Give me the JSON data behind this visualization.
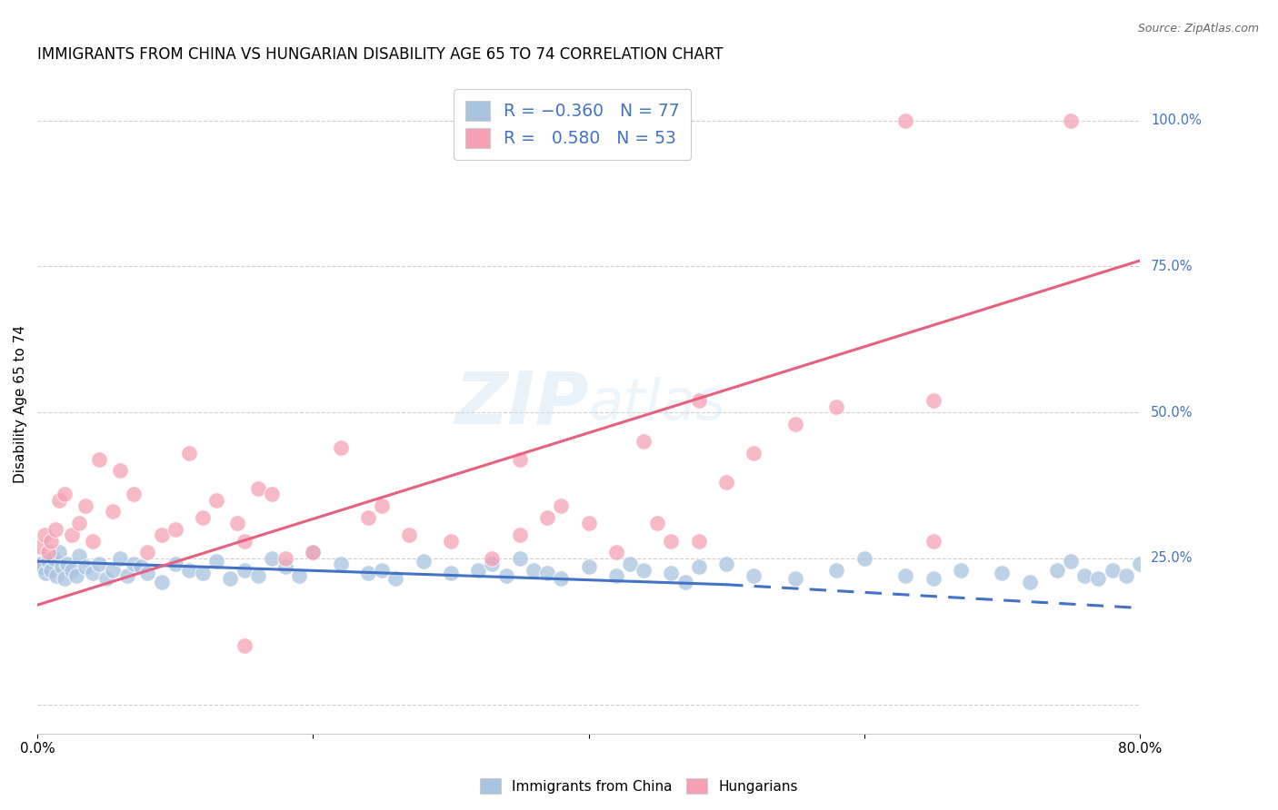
{
  "title": "IMMIGRANTS FROM CHINA VS HUNGARIAN DISABILITY AGE 65 TO 74 CORRELATION CHART",
  "source": "Source: ZipAtlas.com",
  "ylabel": "Disability Age 65 to 74",
  "legend_label1": "Immigrants from China",
  "legend_label2": "Hungarians",
  "watermark": "ZIPatlas",
  "blue_color": "#a8c4e0",
  "pink_color": "#f5a0b5",
  "blue_line_color": "#4472c4",
  "pink_line_color": "#e86080",
  "text_color": "#4472c4",
  "grid_color": "#d0d0d0",
  "blue_scatter_x": [
    0.2,
    0.4,
    0.6,
    0.8,
    1.0,
    1.2,
    1.4,
    1.6,
    1.8,
    2.0,
    2.2,
    2.5,
    2.8,
    3.0,
    3.5,
    4.0,
    4.5,
    5.0,
    5.5,
    6.0,
    6.5,
    7.0,
    7.5,
    8.0,
    9.0,
    10.0,
    11.0,
    12.0,
    13.0,
    14.0,
    15.0,
    16.0,
    17.0,
    18.0,
    19.0,
    20.0,
    22.0,
    24.0,
    25.0,
    26.0,
    28.0,
    30.0,
    32.0,
    33.0,
    34.0,
    35.0,
    36.0,
    37.0,
    38.0,
    40.0,
    42.0,
    43.0,
    44.0,
    46.0,
    47.0,
    48.0,
    50.0,
    52.0,
    55.0,
    58.0,
    60.0,
    63.0,
    65.0,
    67.0,
    70.0,
    72.0,
    74.0,
    75.0,
    76.0,
    77.0,
    78.0,
    79.0,
    80.0
  ],
  "blue_scatter_y": [
    24.0,
    23.5,
    22.5,
    24.5,
    23.0,
    25.0,
    22.0,
    26.0,
    23.5,
    21.5,
    24.0,
    23.0,
    22.0,
    25.5,
    23.5,
    22.5,
    24.0,
    21.5,
    23.0,
    25.0,
    22.0,
    24.0,
    23.5,
    22.5,
    21.0,
    24.0,
    23.0,
    22.5,
    24.5,
    21.5,
    23.0,
    22.0,
    25.0,
    23.5,
    22.0,
    26.0,
    24.0,
    22.5,
    23.0,
    21.5,
    24.5,
    22.5,
    23.0,
    24.0,
    22.0,
    25.0,
    23.0,
    22.5,
    21.5,
    23.5,
    22.0,
    24.0,
    23.0,
    22.5,
    21.0,
    23.5,
    24.0,
    22.0,
    21.5,
    23.0,
    25.0,
    22.0,
    21.5,
    23.0,
    22.5,
    21.0,
    23.0,
    24.5,
    22.0,
    21.5,
    23.0,
    22.0,
    24.0
  ],
  "pink_scatter_x": [
    0.2,
    0.5,
    0.8,
    1.0,
    1.3,
    1.6,
    2.0,
    2.5,
    3.0,
    3.5,
    4.0,
    4.5,
    5.5,
    6.0,
    7.0,
    8.0,
    9.0,
    10.0,
    11.0,
    12.0,
    13.0,
    14.5,
    15.0,
    16.0,
    17.0,
    18.0,
    20.0,
    22.0,
    24.0,
    25.0,
    27.0,
    30.0,
    33.0,
    35.0,
    37.0,
    38.0,
    40.0,
    42.0,
    44.0,
    45.0,
    46.0,
    48.0,
    50.0,
    52.0,
    55.0,
    58.0,
    63.0,
    65.0,
    75.0,
    65.0,
    35.0,
    48.0,
    15.0
  ],
  "pink_scatter_y": [
    27.0,
    29.0,
    26.0,
    28.0,
    30.0,
    35.0,
    36.0,
    29.0,
    31.0,
    34.0,
    28.0,
    42.0,
    33.0,
    40.0,
    36.0,
    26.0,
    29.0,
    30.0,
    43.0,
    32.0,
    35.0,
    31.0,
    28.0,
    37.0,
    36.0,
    25.0,
    26.0,
    44.0,
    32.0,
    34.0,
    29.0,
    28.0,
    25.0,
    29.0,
    32.0,
    34.0,
    31.0,
    26.0,
    45.0,
    31.0,
    28.0,
    52.0,
    38.0,
    43.0,
    48.0,
    51.0,
    100.0,
    52.0,
    100.0,
    28.0,
    42.0,
    28.0,
    10.0
  ],
  "blue_line_x0": 0.0,
  "blue_line_y0": 24.5,
  "blue_line_x1": 50.0,
  "blue_line_y1": 20.5,
  "blue_dash_x0": 50.0,
  "blue_dash_y0": 20.5,
  "blue_dash_x1": 80.0,
  "blue_dash_y1": 16.5,
  "pink_line_x0": 0.0,
  "pink_line_y0": 17.0,
  "pink_line_x1": 80.0,
  "pink_line_y1": 76.0,
  "xmin": 0.0,
  "xmax": 80.0,
  "ymin": -5.0,
  "ymax": 108.0,
  "ytick_positions": [
    0.0,
    25.0,
    50.0,
    75.0,
    100.0
  ],
  "ytick_labels_right": [
    "",
    "25.0%",
    "50.0%",
    "75.0%",
    "100.0%"
  ],
  "xtick_positions": [
    0.0,
    20.0,
    40.0,
    60.0,
    80.0
  ],
  "xtick_labels": [
    "0.0%",
    "",
    "",
    "",
    "80.0%"
  ]
}
